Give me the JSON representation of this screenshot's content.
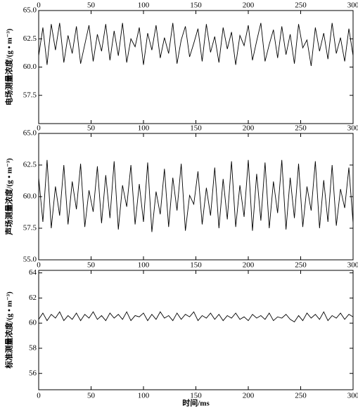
{
  "chart_data": [
    {
      "type": "line",
      "ylabel": "电场测量浓度/(g • m⁻³)",
      "color": "#000000",
      "xlim": [
        0,
        300
      ],
      "xticks": [
        0,
        50,
        100,
        150,
        200,
        250,
        300
      ],
      "ylim": [
        55,
        65
      ],
      "yticks": [
        57.5,
        {
          "value": 60,
          "label": "60.0"
        },
        62.5,
        {
          "value": 65,
          "label": "65.0"
        }
      ],
      "x": [
        0,
        4,
        8,
        12,
        16,
        20,
        24,
        28,
        32,
        36,
        40,
        44,
        48,
        52,
        56,
        60,
        64,
        68,
        72,
        76,
        80,
        84,
        88,
        92,
        96,
        100,
        104,
        108,
        112,
        116,
        120,
        124,
        128,
        132,
        136,
        140,
        144,
        148,
        152,
        156,
        160,
        164,
        168,
        172,
        176,
        180,
        184,
        188,
        192,
        196,
        200,
        204,
        208,
        212,
        216,
        220,
        224,
        228,
        232,
        236,
        240,
        244,
        248,
        252,
        256,
        260,
        264,
        268,
        272,
        276,
        280,
        284,
        288,
        292,
        296,
        300
      ],
      "values": [
        61.0,
        63.5,
        60.2,
        63.8,
        61.5,
        63.9,
        60.4,
        62.8,
        61.2,
        63.6,
        60.3,
        62.0,
        63.7,
        60.5,
        62.9,
        61.4,
        63.8,
        60.6,
        63.2,
        61.0,
        63.9,
        60.4,
        62.5,
        61.8,
        63.5,
        60.2,
        63.0,
        61.5,
        63.7,
        60.8,
        62.6,
        61.2,
        63.9,
        60.3,
        62.4,
        63.6,
        60.9,
        62.1,
        63.4,
        60.5,
        63.8,
        61.3,
        62.7,
        60.4,
        63.5,
        61.6,
        63.1,
        60.2,
        62.8,
        61.9,
        63.7,
        60.6,
        62.3,
        63.9,
        60.5,
        62.0,
        63.3,
        60.8,
        63.6,
        61.1,
        62.9,
        60.3,
        63.8,
        61.7,
        62.4,
        60.1,
        63.5,
        61.4,
        63.0,
        60.7,
        63.9,
        61.2,
        62.6,
        60.5,
        63.4,
        61.0
      ]
    },
    {
      "type": "line",
      "ylabel": "声场测量浓度/(g • m⁻³)",
      "color": "#000000",
      "xlim": [
        0,
        300
      ],
      "xticks": [
        0,
        50,
        100,
        150,
        200,
        250,
        300
      ],
      "ylim": [
        55,
        65
      ],
      "yticks": [
        {
          "value": 55,
          "label": "55.0"
        },
        57.5,
        {
          "value": 60,
          "label": "60.0"
        },
        62.5,
        {
          "value": 65,
          "label": "65.0"
        }
      ],
      "x": [
        0,
        4,
        8,
        12,
        16,
        20,
        24,
        28,
        32,
        36,
        40,
        44,
        48,
        52,
        56,
        60,
        64,
        68,
        72,
        76,
        80,
        84,
        88,
        92,
        96,
        100,
        104,
        108,
        112,
        116,
        120,
        124,
        128,
        132,
        136,
        140,
        144,
        148,
        152,
        156,
        160,
        164,
        168,
        172,
        176,
        180,
        184,
        188,
        192,
        196,
        200,
        204,
        208,
        212,
        216,
        220,
        224,
        228,
        232,
        236,
        240,
        244,
        248,
        252,
        256,
        260,
        264,
        268,
        272,
        276,
        280,
        284,
        288,
        292,
        296,
        300
      ],
      "values": [
        61.5,
        58.0,
        62.9,
        57.5,
        60.8,
        58.5,
        62.5,
        57.8,
        61.2,
        59.0,
        62.6,
        57.6,
        60.5,
        58.8,
        62.4,
        57.9,
        61.7,
        58.3,
        62.8,
        57.4,
        60.9,
        59.2,
        62.5,
        57.8,
        61.0,
        58.0,
        62.7,
        57.2,
        60.4,
        58.6,
        62.2,
        57.6,
        61.5,
        58.9,
        62.6,
        57.3,
        60.1,
        59.4,
        62.0,
        57.8,
        60.7,
        58.5,
        62.3,
        57.5,
        61.4,
        58.2,
        62.8,
        57.6,
        60.9,
        58.4,
        62.9,
        57.3,
        61.8,
        58.1,
        62.7,
        57.5,
        61.2,
        58.7,
        62.9,
        57.4,
        61.5,
        58.3,
        62.6,
        57.6,
        60.8,
        58.9,
        62.8,
        57.5,
        61.3,
        58.0,
        62.5,
        57.7,
        60.6,
        59.1,
        62.3,
        57.9
      ]
    },
    {
      "type": "line",
      "ylabel": "标准测量浓度/(g • m⁻³)",
      "xlabel": "时间/ms",
      "color": "#000000",
      "xlim": [
        0,
        300
      ],
      "xticks": [
        0,
        50,
        100,
        150,
        200,
        250,
        300
      ],
      "ylim": [
        54.7,
        64.2
      ],
      "yticks": [
        56,
        58,
        60,
        62,
        64
      ],
      "x": [
        0,
        4,
        8,
        12,
        16,
        20,
        24,
        28,
        32,
        36,
        40,
        44,
        48,
        52,
        56,
        60,
        64,
        68,
        72,
        76,
        80,
        84,
        88,
        92,
        96,
        100,
        104,
        108,
        112,
        116,
        120,
        124,
        128,
        132,
        136,
        140,
        144,
        148,
        152,
        156,
        160,
        164,
        168,
        172,
        176,
        180,
        184,
        188,
        192,
        196,
        200,
        204,
        208,
        212,
        216,
        220,
        224,
        228,
        232,
        236,
        240,
        244,
        248,
        252,
        256,
        260,
        264,
        268,
        272,
        276,
        280,
        284,
        288,
        292,
        296,
        300
      ],
      "values": [
        60.3,
        60.8,
        60.2,
        60.7,
        60.4,
        60.9,
        60.2,
        60.6,
        60.3,
        60.8,
        60.2,
        60.7,
        60.4,
        60.9,
        60.3,
        60.6,
        60.2,
        60.8,
        60.4,
        60.7,
        60.3,
        60.9,
        60.2,
        60.6,
        60.5,
        60.8,
        60.2,
        60.7,
        60.3,
        60.9,
        60.4,
        60.6,
        60.2,
        60.8,
        60.3,
        60.7,
        60.5,
        60.9,
        60.2,
        60.6,
        60.4,
        60.8,
        60.3,
        60.7,
        60.2,
        60.6,
        60.4,
        60.8,
        60.3,
        60.5,
        60.2,
        60.7,
        60.4,
        60.6,
        60.3,
        60.8,
        60.2,
        60.5,
        60.4,
        60.7,
        60.3,
        60.1,
        60.6,
        60.2,
        60.8,
        60.4,
        60.7,
        60.3,
        60.9,
        60.2,
        60.6,
        60.4,
        60.8,
        60.3,
        60.7,
        60.5
      ]
    }
  ]
}
